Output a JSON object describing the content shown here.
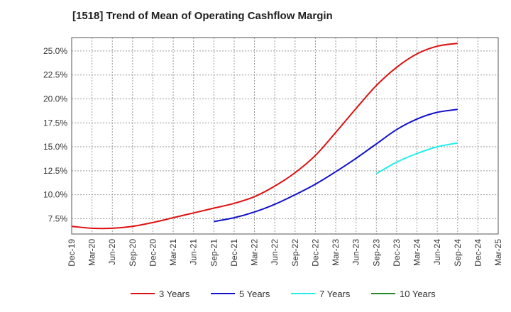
{
  "chart_data": {
    "type": "line",
    "title": "[1518]  Trend of Mean of Operating Cashflow Margin",
    "xlabel": "",
    "ylabel": "",
    "x_ticks": [
      "Dec-19",
      "Mar-20",
      "Jun-20",
      "Sep-20",
      "Dec-20",
      "Mar-21",
      "Jun-21",
      "Sep-21",
      "Dec-21",
      "Mar-22",
      "Jun-22",
      "Sep-22",
      "Dec-22",
      "Mar-23",
      "Jun-23",
      "Sep-23",
      "Dec-23",
      "Mar-24",
      "Jun-24",
      "Sep-24",
      "Dec-24",
      "Mar-25"
    ],
    "y_ticks": [
      7.5,
      10.0,
      12.5,
      15.0,
      17.5,
      20.0,
      22.5,
      25.0
    ],
    "y_tick_labels": [
      "7.5%",
      "10.0%",
      "12.5%",
      "15.0%",
      "17.5%",
      "20.0%",
      "22.5%",
      "25.0%"
    ],
    "ylim": [
      5.9,
      26.4
    ],
    "grid": true,
    "legend_position": "bottom",
    "series": [
      {
        "name": "3 Years",
        "color": "#dd1111",
        "x": [
          "Dec-19",
          "Mar-20",
          "Jun-20",
          "Sep-20",
          "Dec-20",
          "Mar-21",
          "Jun-21",
          "Sep-21",
          "Dec-21",
          "Mar-22",
          "Jun-22",
          "Sep-22",
          "Dec-22",
          "Mar-23",
          "Jun-23",
          "Sep-23",
          "Dec-23",
          "Mar-24",
          "Jun-24",
          "Sep-24"
        ],
        "values": [
          6.7,
          6.5,
          6.5,
          6.7,
          7.1,
          7.6,
          8.1,
          8.6,
          9.1,
          9.8,
          10.9,
          12.3,
          14.1,
          16.5,
          19.0,
          21.4,
          23.3,
          24.7,
          25.5,
          25.8
        ]
      },
      {
        "name": "5 Years",
        "color": "#1111cc",
        "x": [
          "Sep-21",
          "Dec-21",
          "Mar-22",
          "Jun-22",
          "Sep-22",
          "Dec-22",
          "Mar-23",
          "Jun-23",
          "Sep-23",
          "Dec-23",
          "Mar-24",
          "Jun-24",
          "Sep-24"
        ],
        "values": [
          7.2,
          7.6,
          8.2,
          9.0,
          10.0,
          11.1,
          12.4,
          13.8,
          15.3,
          16.8,
          17.9,
          18.6,
          18.9
        ]
      },
      {
        "name": "7 Years",
        "color": "#22eeee",
        "x": [
          "Sep-23",
          "Dec-23",
          "Mar-24",
          "Jun-24",
          "Sep-24"
        ],
        "values": [
          12.2,
          13.4,
          14.3,
          15.0,
          15.4
        ]
      },
      {
        "name": "10 Years",
        "color": "#228822",
        "x": [],
        "values": []
      }
    ]
  }
}
